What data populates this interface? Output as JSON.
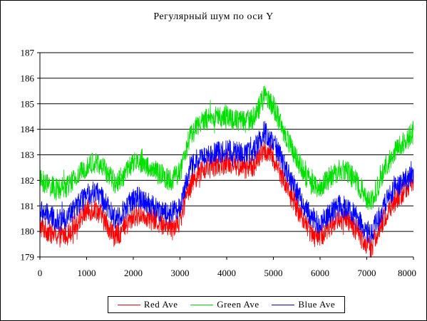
{
  "chart_data": {
    "type": "line",
    "title": "Регулярный шум по оси Y",
    "xlabel": "",
    "ylabel": "",
    "xlim": [
      0,
      8000
    ],
    "ylim": [
      179,
      187
    ],
    "x_ticks": [
      0,
      1000,
      2000,
      3000,
      4000,
      5000,
      6000,
      7000,
      8000
    ],
    "y_ticks": [
      179,
      180,
      181,
      182,
      183,
      184,
      185,
      186,
      187
    ],
    "grid": "horizontal",
    "legend_position": "bottom",
    "noise_amplitude": 0.45,
    "series": [
      {
        "name": "Red Ave",
        "color": "#ff0000",
        "x": [
          0,
          200,
          400,
          600,
          800,
          1000,
          1200,
          1400,
          1600,
          1800,
          2000,
          2200,
          2400,
          2600,
          2800,
          3000,
          3200,
          3400,
          3600,
          3800,
          4000,
          4200,
          4400,
          4600,
          4800,
          5000,
          5200,
          5400,
          5600,
          5800,
          6000,
          6200,
          6400,
          6600,
          6800,
          7000,
          7100,
          7200,
          7400,
          7600,
          7800,
          8000
        ],
        "values": [
          180.2,
          180.0,
          179.8,
          179.9,
          180.4,
          180.8,
          180.9,
          180.4,
          179.8,
          180.1,
          180.6,
          180.7,
          180.5,
          180.3,
          180.2,
          180.4,
          181.8,
          182.3,
          182.5,
          182.6,
          182.7,
          182.6,
          182.5,
          182.6,
          183.2,
          182.9,
          182.1,
          181.3,
          180.6,
          180.0,
          179.8,
          180.2,
          180.5,
          180.4,
          180.0,
          179.5,
          179.4,
          179.8,
          180.6,
          181.2,
          181.6,
          182.0
        ]
      },
      {
        "name": "Green Ave",
        "color": "#00e000",
        "x": [
          0,
          200,
          400,
          600,
          800,
          1000,
          1200,
          1400,
          1600,
          1800,
          2000,
          2200,
          2400,
          2600,
          2800,
          3000,
          3200,
          3400,
          3600,
          3800,
          4000,
          4200,
          4400,
          4600,
          4800,
          5000,
          5200,
          5400,
          5600,
          5800,
          6000,
          6200,
          6400,
          6600,
          6800,
          7000,
          7100,
          7200,
          7400,
          7600,
          7800,
          8000
        ],
        "values": [
          182.0,
          181.8,
          181.6,
          181.8,
          182.1,
          182.6,
          182.7,
          182.4,
          181.9,
          182.2,
          182.7,
          182.7,
          182.4,
          182.2,
          182.0,
          182.3,
          183.7,
          184.2,
          184.4,
          184.5,
          184.5,
          184.4,
          184.3,
          184.5,
          185.3,
          184.9,
          184.0,
          183.2,
          182.5,
          181.9,
          181.7,
          182.1,
          182.4,
          182.3,
          181.9,
          181.3,
          181.2,
          181.6,
          182.5,
          183.1,
          183.5,
          183.9
        ]
      },
      {
        "name": "Blue Ave",
        "color": "#0000ff",
        "x": [
          0,
          200,
          400,
          600,
          800,
          1000,
          1200,
          1400,
          1600,
          1800,
          2000,
          2200,
          2400,
          2600,
          2800,
          3000,
          3200,
          3400,
          3600,
          3800,
          4000,
          4200,
          4400,
          4600,
          4800,
          5000,
          5200,
          5400,
          5600,
          5800,
          6000,
          6200,
          6400,
          6600,
          6800,
          7000,
          7100,
          7200,
          7400,
          7600,
          7800,
          8000
        ],
        "values": [
          180.8,
          180.6,
          180.4,
          180.6,
          181.0,
          181.4,
          181.6,
          181.1,
          180.5,
          180.8,
          181.3,
          181.3,
          181.0,
          180.8,
          180.7,
          181.0,
          182.4,
          182.9,
          183.0,
          183.1,
          183.2,
          183.1,
          183.0,
          183.2,
          183.9,
          183.5,
          182.7,
          181.9,
          181.2,
          180.6,
          180.3,
          180.7,
          181.0,
          180.9,
          180.5,
          180.0,
          179.9,
          180.3,
          181.1,
          181.7,
          182.0,
          182.3
        ]
      }
    ]
  }
}
